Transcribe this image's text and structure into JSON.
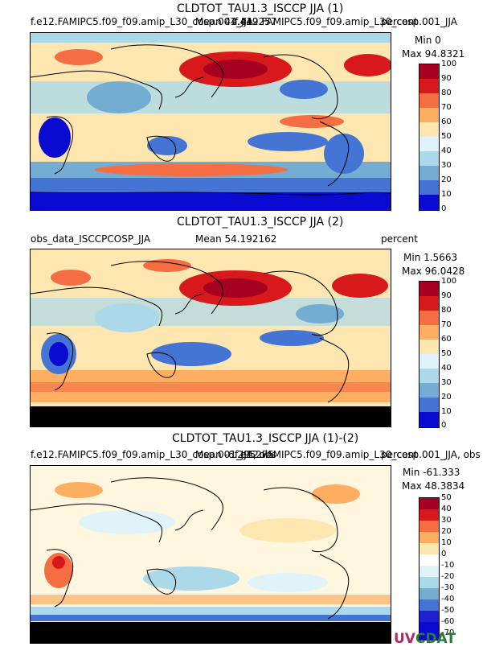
{
  "panels": [
    {
      "title": "CLDTOT_TAU1.3_ISCCP JJA (1)",
      "left_label": "f.e12.FAMIPC5.f09_f09.amip_L30_cosp.001_JJA",
      "mean": "Mean 44.449257",
      "right_label": "f.e12.FAMIPC5.f09_f09.amip_L30_cosp.001_JJA",
      "units": "percent",
      "min": "Min 0",
      "max": "Max 94.8321",
      "colorbar": {
        "ticks": [
          "100",
          "90",
          "80",
          "70",
          "60",
          "50",
          "40",
          "30",
          "20",
          "10",
          "0"
        ],
        "colors": [
          "#a50021",
          "#d7191c",
          "#f46d43",
          "#fdae61",
          "#fee6b0",
          "#e0f3f8",
          "#abd9e9",
          "#74add1",
          "#4575d4",
          "#0a0ad0"
        ]
      }
    },
    {
      "title": "CLDTOT_TAU1.3_ISCCP JJA (2)",
      "left_label": "obs_data_ISCCPCOSP_JJA",
      "mean": "Mean 54.192162",
      "units": "percent",
      "min": "Min 1.5663",
      "max": "Max 96.0428",
      "colorbar": {
        "ticks": [
          "100",
          "90",
          "80",
          "70",
          "60",
          "50",
          "40",
          "30",
          "20",
          "10",
          "0"
        ],
        "colors": [
          "#a50021",
          "#d7191c",
          "#f46d43",
          "#fdae61",
          "#fee6b0",
          "#e0f3f8",
          "#abd9e9",
          "#74add1",
          "#4575d4",
          "#0a0ad0"
        ]
      }
    },
    {
      "title": "CLDTOT_TAU1.3_ISCCP JJA (1)-(2)",
      "left_label": "f.e12.FAMIPC5.f09_f09.amip_L30_cosp.001_JJA, obs",
      "mean": "Mean -6.295275",
      "right_label": "f.e12.FAMIPC5.f09_f09.amip_L30_cosp.001_JJA, obs",
      "units": "percent",
      "min": "Min -61.333",
      "max": "Max 48.3834",
      "colorbar": {
        "ticks": [
          "50",
          "40",
          "30",
          "20",
          "10",
          "0",
          "-10",
          "-20",
          "-30",
          "-40",
          "-50",
          "-60",
          "-70"
        ],
        "colors": [
          "#a50021",
          "#d7191c",
          "#f46d43",
          "#fdae61",
          "#fee6b0",
          "#ffffff",
          "#e0f3f8",
          "#abd9e9",
          "#74add1",
          "#4575d4",
          "#2020d0",
          "#0a0ad0"
        ]
      }
    }
  ],
  "logo": {
    "text_a": "UV",
    "text_b": "CDAT"
  }
}
